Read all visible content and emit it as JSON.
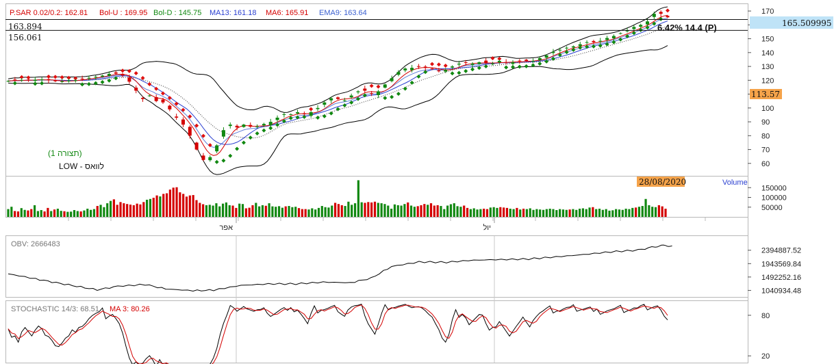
{
  "chart_data": [
    {
      "type": "candlestick",
      "legend": [
        {
          "label": "P.SAR 0.02/0.2:",
          "value": "162.81",
          "color": "#d40000"
        },
        {
          "label": "Bol-U :",
          "value": "169.95",
          "color": "#d40000"
        },
        {
          "label": "Bol-D :",
          "value": "145.75",
          "color": "#118811"
        },
        {
          "label": "MA13:",
          "value": "161.18",
          "color": "#2a3fd0"
        },
        {
          "label": "MA6:",
          "value": "165.91",
          "color": "#d40000"
        },
        {
          "label": "EMA9:",
          "value": "163.64",
          "color": "#3a5fd0"
        }
      ],
      "y_ticks": [
        "170",
        "160",
        "150",
        "140",
        "130",
        "120",
        "110",
        "100",
        "90",
        "80",
        "70",
        "60"
      ],
      "ylim": [
        52,
        174
      ],
      "level_labels": [
        "163.894",
        "156.061"
      ],
      "levels": [
        163.894,
        156.061
      ],
      "last_price_label": "165.509995",
      "last_price": 165.51,
      "marker_label": "113.57",
      "marker_value": 113.57,
      "annotation": "6.42% 14.4 (P)",
      "pattern_label": "(תצורה 1)",
      "low_label": "לוואס - LOW",
      "x_labels": [
        "אפר",
        "יול"
      ],
      "close": [
        119.5,
        119.8,
        120.1,
        119.6,
        120.3,
        120.5,
        120.2,
        119.9,
        120.4,
        120.8,
        120.6,
        120.1,
        120.0,
        119.7,
        119.3,
        118.9,
        119.2,
        119.6,
        119.8,
        120.3,
        120.1,
        120.5,
        121.0,
        121.3,
        121.8,
        122.3,
        122.5,
        123.0,
        123.4,
        124.0,
        124.6,
        125.0,
        124.8,
        124.2,
        123.5,
        122.0,
        119.0,
        115.0,
        112.5,
        108.0,
        106.5,
        108.0,
        109.0,
        107.5,
        105.0,
        106.0,
        104.0,
        102.0,
        99.0,
        94.5,
        93.0,
        91.0,
        88.0,
        86.0,
        80.0,
        75.0,
        70.0,
        66.0,
        62.5,
        63.0,
        64.5,
        68.0,
        73.0,
        79.0,
        84.0,
        87.0,
        88.0,
        87.5,
        86.0,
        87.0,
        88.0,
        87.0,
        86.5,
        86.0,
        86.8,
        87.5,
        88.5,
        88.0,
        90.0,
        92.0,
        93.0,
        94.5,
        95.5,
        95.0,
        95.5,
        96.0,
        97.0,
        96.5,
        95.5,
        95.0,
        97.0,
        98.5,
        100.0,
        102.0,
        104.0,
        105.5,
        107.0,
        108.0,
        106.5,
        106.0,
        105.5,
        107.0,
        109.0,
        111.0,
        112.0,
        114.0,
        112.5,
        111.0,
        110.5,
        110.0,
        112.0,
        114.0,
        117.0,
        119.0,
        121.5,
        124.0,
        126.0,
        127.5,
        128.5,
        128.0,
        129.0,
        129.5,
        130.0,
        129.5,
        129.0,
        128.5,
        128.0,
        127.5,
        126.5,
        127.0,
        127.5,
        128.5,
        130.0,
        131.0,
        132.0,
        133.0,
        132.5,
        131.5,
        132.0,
        132.5,
        133.0,
        133.5,
        132.5,
        131.5,
        132.0,
        133.0,
        134.0,
        133.5,
        133.0,
        132.5,
        133.0,
        133.5,
        134.0,
        134.5,
        134.0,
        133.5,
        134.0,
        135.0,
        136.0,
        137.0,
        138.0,
        139.0,
        140.5,
        141.5,
        142.0,
        143.0,
        143.5,
        144.0,
        144.5,
        145.5,
        146.0,
        146.5,
        147.5,
        148.0,
        147.5,
        148.0,
        148.5,
        149.5,
        150.5,
        151.0,
        152.0,
        153.0,
        154.0,
        155.0,
        156.0,
        157.0,
        158.5,
        159.0,
        160.0,
        161.0,
        162.5,
        165.0,
        168.0,
        169.0,
        168.0,
        166.5,
        165.5
      ]
    },
    {
      "type": "bar",
      "label": "Volume",
      "date_label": "28/08/2020",
      "y_ticks": [
        "150000",
        "100000",
        "50000"
      ],
      "ylim": [
        0,
        200000
      ],
      "values": [
        40000,
        52000,
        30000,
        28000,
        45000,
        36000,
        33000,
        40000,
        60000,
        30000,
        35000,
        28000,
        46000,
        30000,
        38000,
        42000,
        31000,
        29000,
        26000,
        27000,
        35000,
        30000,
        28000,
        33000,
        42000,
        36000,
        40000,
        56000,
        62000,
        50000,
        70000,
        82000,
        90000,
        62000,
        76000,
        70000,
        66000,
        63000,
        60000,
        68000,
        64000,
        76000,
        88000,
        92000,
        98000,
        110000,
        105000,
        118000,
        121000,
        140000,
        150000,
        152000,
        126000,
        118000,
        104000,
        110000,
        112000,
        86000,
        72000,
        65000,
        60000,
        62000,
        58000,
        70000,
        54000,
        68000,
        74000,
        60000,
        58000,
        46000,
        68000,
        66000,
        44000,
        47000,
        60000,
        72000,
        54000,
        60000,
        57000,
        70000,
        54000,
        52000,
        55000,
        47000,
        54000,
        56000,
        50000,
        52000,
        45000,
        40000,
        40000,
        38000,
        44000,
        38000,
        46000,
        56000,
        50000,
        48000,
        58000,
        72000,
        66000,
        60000,
        56000,
        78000,
        62000,
        70000,
        188000,
        75000,
        72000,
        76000,
        74000,
        78000,
        72000,
        70000,
        66000,
        58000,
        42000,
        64000,
        60000,
        58000,
        66000,
        74000,
        58000,
        52000,
        55000,
        60000,
        66000,
        62000,
        70000,
        58000,
        60000,
        56000,
        40000,
        58000,
        65000,
        70000,
        55000,
        52000,
        58000,
        46000,
        40000,
        44000,
        38000,
        40000,
        42000,
        40000,
        48000,
        50000,
        46000,
        50000,
        48000,
        46000,
        42000,
        40000,
        46000,
        38000,
        42000,
        40000,
        44000,
        36000,
        40000,
        38000,
        36000,
        40000,
        42000,
        40000,
        35000,
        40000,
        38000,
        36000,
        38000,
        40000,
        36000,
        42000,
        44000,
        40000,
        48000,
        50000,
        40000,
        42000,
        36000,
        40000,
        32000,
        34000,
        40000,
        38000,
        36000,
        42000,
        40000,
        46000,
        48000,
        52000,
        56000,
        92000,
        60000,
        52000,
        50000,
        60000,
        54000,
        42000
      ]
    },
    {
      "type": "line",
      "label": "OBV:",
      "value": "2666483",
      "y_ticks": [
        "2394887.52",
        "1943569.84",
        "1492252.16",
        "1040934.48"
      ],
      "ylim": [
        820000,
        2850000
      ]
    },
    {
      "type": "line",
      "label": "STOCHASTIC 14/3:",
      "value": "68.51",
      "ma_label": "MA 3:",
      "ma_value": "80.26",
      "y_ticks": [
        "80",
        "20"
      ],
      "ylim": [
        10,
        100
      ]
    }
  ],
  "colors": {
    "up": "#118811",
    "down": "#d40000",
    "sar_up": "#118811",
    "sar_down": "#e01010",
    "bollinger": "#000000",
    "ma13": "#2a3fd0",
    "ma6": "#d40000",
    "ema9": "#3a5fd0",
    "highlight": "#f5a34a",
    "price_box": "#bfe3f7"
  }
}
